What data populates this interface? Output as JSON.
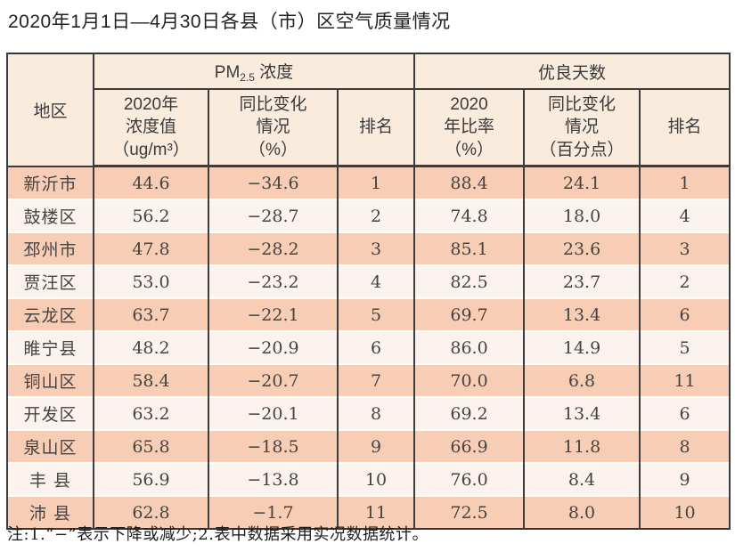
{
  "title": "2020年1月1日—4月30日各县（市）区空气质量情况",
  "table": {
    "region_header": "地区",
    "pm_group": {
      "prefix": "PM",
      "sub": "2.5",
      "suffix": " 浓度"
    },
    "good_days_group": "优良天数",
    "sub_headers": {
      "pm_value": "2020年\n浓度值\n（ug/m³）",
      "pm_change": "同比变化\n情况\n（%）",
      "pm_rank": "排名",
      "rate_value": "2020\n年比率\n（%）",
      "rate_change": "同比变化\n情况\n（百分点）",
      "rate_rank": "排名"
    },
    "rows": [
      {
        "region": "新沂市",
        "pm_value": "44.6",
        "pm_change": "−34.6",
        "pm_rank": "1",
        "rate": "88.4",
        "rate_change": "24.1",
        "rate_rank": "1"
      },
      {
        "region": "鼓楼区",
        "pm_value": "56.2",
        "pm_change": "−28.7",
        "pm_rank": "2",
        "rate": "74.8",
        "rate_change": "18.0",
        "rate_rank": "4"
      },
      {
        "region": "邳州市",
        "pm_value": "47.8",
        "pm_change": "−28.2",
        "pm_rank": "3",
        "rate": "85.1",
        "rate_change": "23.6",
        "rate_rank": "3"
      },
      {
        "region": "贾汪区",
        "pm_value": "53.0",
        "pm_change": "−23.2",
        "pm_rank": "4",
        "rate": "82.5",
        "rate_change": "23.7",
        "rate_rank": "2"
      },
      {
        "region": "云龙区",
        "pm_value": "63.7",
        "pm_change": "−22.1",
        "pm_rank": "5",
        "rate": "69.7",
        "rate_change": "13.4",
        "rate_rank": "6"
      },
      {
        "region": "睢宁县",
        "pm_value": "48.2",
        "pm_change": "−20.9",
        "pm_rank": "6",
        "rate": "86.0",
        "rate_change": "14.9",
        "rate_rank": "5"
      },
      {
        "region": "铜山区",
        "pm_value": "58.4",
        "pm_change": "−20.7",
        "pm_rank": "7",
        "rate": "70.0",
        "rate_change": "6.8",
        "rate_rank": "11"
      },
      {
        "region": "开发区",
        "pm_value": "63.2",
        "pm_change": "−20.1",
        "pm_rank": "8",
        "rate": "69.2",
        "rate_change": "13.4",
        "rate_rank": "6"
      },
      {
        "region": "泉山区",
        "pm_value": "65.8",
        "pm_change": "−18.5",
        "pm_rank": "9",
        "rate": "66.9",
        "rate_change": "11.8",
        "rate_rank": "8"
      },
      {
        "region": "丰 县",
        "pm_value": "56.9",
        "pm_change": "−13.8",
        "pm_rank": "10",
        "rate": "76.0",
        "rate_change": "8.4",
        "rate_rank": "9"
      },
      {
        "region": "沛 县",
        "pm_value": "62.8",
        "pm_change": "−1.7",
        "pm_rank": "11",
        "rate": "72.5",
        "rate_change": "8.0",
        "rate_rank": "10"
      }
    ]
  },
  "footnote": "注:1.“−”表示下降或减少;2.表中数据采用实况数据统计。"
}
